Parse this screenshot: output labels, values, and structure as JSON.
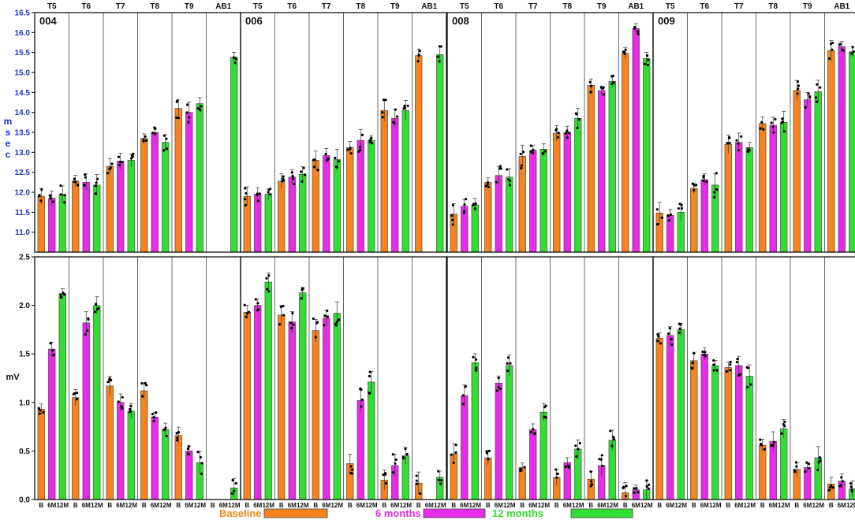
{
  "chart_data": {
    "type": "bar",
    "groups": [
      "B",
      "6M",
      "12M"
    ],
    "segments": [
      "T5",
      "T6",
      "T7",
      "T8",
      "T9",
      "AB1"
    ],
    "subjects": [
      "004",
      "006",
      "008",
      "009"
    ],
    "colors": {
      "B": "#f5841f",
      "6M": "#e62ce6",
      "12M": "#33dd33"
    },
    "legend": [
      {
        "key": "B",
        "label": "Baseline"
      },
      {
        "key": "6M",
        "label": "6 months"
      },
      {
        "key": "12M",
        "label": "12 months"
      }
    ],
    "top": {
      "ylabel": "m s e c",
      "ylim": [
        10.5,
        16.5
      ],
      "yticks": [
        "11.0",
        "11.5",
        "12.0",
        "12.5",
        "13.0",
        "13.5",
        "14.0",
        "14.5",
        "15.0",
        "15.5",
        "16.0",
        "16.5"
      ],
      "panels": [
        {
          "subject": "004",
          "values": [
            [
              11.9,
              11.85,
              11.95
            ],
            [
              12.28,
              12.25,
              12.18
            ],
            [
              12.65,
              12.78,
              12.8
            ],
            [
              13.35,
              13.5,
              13.25
            ],
            [
              14.1,
              14.0,
              14.22
            ],
            [
              null,
              null,
              15.38
            ]
          ]
        },
        {
          "subject": "006",
          "values": [
            [
              11.9,
              11.95,
              11.95
            ],
            [
              12.28,
              12.38,
              12.45
            ],
            [
              12.8,
              12.92,
              12.82
            ],
            [
              13.12,
              13.3,
              13.3
            ],
            [
              14.05,
              13.85,
              14.05
            ],
            [
              15.42,
              null,
              15.45
            ]
          ]
        },
        {
          "subject": "008",
          "values": [
            [
              11.45,
              11.65,
              11.68
            ],
            [
              12.25,
              12.42,
              12.38
            ],
            [
              12.9,
              13.05,
              13.08
            ],
            [
              13.48,
              13.5,
              13.85
            ],
            [
              14.68,
              14.55,
              14.78
            ],
            [
              15.48,
              16.1,
              15.35
            ]
          ]
        },
        {
          "subject": "009",
          "values": [
            [
              11.48,
              11.42,
              11.5
            ],
            [
              12.1,
              12.32,
              12.18
            ],
            [
              13.2,
              13.25,
              13.12
            ],
            [
              13.72,
              13.68,
              13.75
            ],
            [
              14.55,
              14.32,
              14.52
            ],
            [
              15.55,
              15.65,
              15.52
            ]
          ]
        }
      ]
    },
    "bottom": {
      "ylabel": "mV",
      "ylim": [
        0.0,
        2.5
      ],
      "yticks": [
        "0.0",
        "0.5",
        "1.0",
        "1.5",
        "2.0",
        "2.5"
      ],
      "panels": [
        {
          "subject": "004",
          "values": [
            [
              0.93,
              1.55,
              2.12
            ],
            [
              1.05,
              1.82,
              2.0
            ],
            [
              1.17,
              1.0,
              0.91
            ],
            [
              1.12,
              0.85,
              0.72
            ],
            [
              0.66,
              0.5,
              0.38
            ],
            [
              null,
              null,
              0.12
            ]
          ]
        },
        {
          "subject": "006",
          "values": [
            [
              1.93,
              2.0,
              2.24
            ],
            [
              1.9,
              1.83,
              2.13
            ],
            [
              1.74,
              1.87,
              1.92
            ],
            [
              0.37,
              1.02,
              1.21
            ],
            [
              0.2,
              0.35,
              0.45
            ],
            [
              0.17,
              null,
              0.23
            ]
          ]
        },
        {
          "subject": "008",
          "values": [
            [
              0.47,
              1.07,
              1.41
            ],
            [
              0.43,
              1.2,
              1.38
            ],
            [
              0.33,
              0.72,
              0.9
            ],
            [
              0.23,
              0.38,
              0.52
            ],
            [
              0.21,
              0.35,
              0.61
            ],
            [
              0.07,
              0.1,
              0.1
            ]
          ]
        },
        {
          "subject": "009",
          "values": [
            [
              1.66,
              1.69,
              1.75
            ],
            [
              1.43,
              1.5,
              1.38
            ],
            [
              1.36,
              1.38,
              1.27
            ],
            [
              0.56,
              0.6,
              0.73
            ],
            [
              0.31,
              0.33,
              0.43
            ],
            [
              0.16,
              0.19,
              0.11
            ]
          ]
        }
      ]
    }
  }
}
